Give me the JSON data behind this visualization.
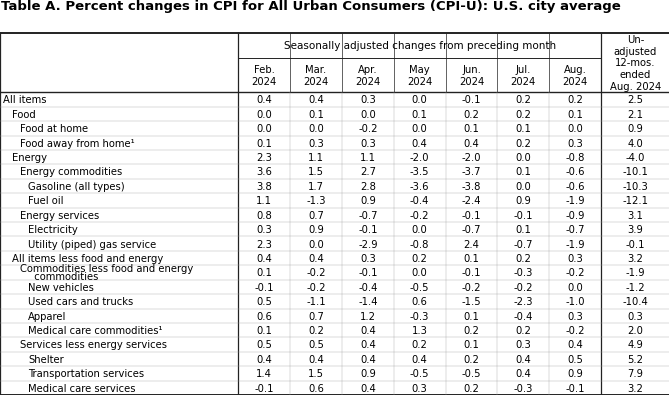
{
  "title": "Table A. Percent changes in CPI for All Urban Consumers (CPI-U): U.S. city average",
  "month_headers": [
    "Feb.\n2024",
    "Mar.\n2024",
    "Apr.\n2024",
    "May\n2024",
    "Jun.\n2024",
    "Jul.\n2024",
    "Aug.\n2024"
  ],
  "unadj_header": "Un-\nadjusted\n12-mos.\nended\nAug. 2024",
  "seasonal_header": "Seasonally adjusted changes from preceding month",
  "rows": [
    [
      "All items",
      0,
      "0.4",
      "0.4",
      "0.3",
      "0.0",
      "-0.1",
      "0.2",
      "0.2",
      "2.5"
    ],
    [
      "Food",
      1,
      "0.0",
      "0.1",
      "0.0",
      "0.1",
      "0.2",
      "0.2",
      "0.1",
      "2.1"
    ],
    [
      "Food at home",
      2,
      "0.0",
      "0.0",
      "-0.2",
      "0.0",
      "0.1",
      "0.1",
      "0.0",
      "0.9"
    ],
    [
      "Food away from home¹",
      2,
      "0.1",
      "0.3",
      "0.3",
      "0.4",
      "0.4",
      "0.2",
      "0.3",
      "4.0"
    ],
    [
      "Energy",
      1,
      "2.3",
      "1.1",
      "1.1",
      "-2.0",
      "-2.0",
      "0.0",
      "-0.8",
      "-4.0"
    ],
    [
      "Energy commodities",
      2,
      "3.6",
      "1.5",
      "2.7",
      "-3.5",
      "-3.7",
      "0.1",
      "-0.6",
      "-10.1"
    ],
    [
      "Gasoline (all types)",
      3,
      "3.8",
      "1.7",
      "2.8",
      "-3.6",
      "-3.8",
      "0.0",
      "-0.6",
      "-10.3"
    ],
    [
      "Fuel oil",
      3,
      "1.1",
      "-1.3",
      "0.9",
      "-0.4",
      "-2.4",
      "0.9",
      "-1.9",
      "-12.1"
    ],
    [
      "Energy services",
      2,
      "0.8",
      "0.7",
      "-0.7",
      "-0.2",
      "-0.1",
      "-0.1",
      "-0.9",
      "3.1"
    ],
    [
      "Electricity",
      3,
      "0.3",
      "0.9",
      "-0.1",
      "0.0",
      "-0.7",
      "0.1",
      "-0.7",
      "3.9"
    ],
    [
      "Utility (piped) gas service",
      3,
      "2.3",
      "0.0",
      "-2.9",
      "-0.8",
      "2.4",
      "-0.7",
      "-1.9",
      "-0.1"
    ],
    [
      "All items less food and energy",
      1,
      "0.4",
      "0.4",
      "0.3",
      "0.2",
      "0.1",
      "0.2",
      "0.3",
      "3.2"
    ],
    [
      "Commodities less food and energy\n  commodities",
      2,
      "0.1",
      "-0.2",
      "-0.1",
      "0.0",
      "-0.1",
      "-0.3",
      "-0.2",
      "-1.9"
    ],
    [
      "New vehicles",
      3,
      "-0.1",
      "-0.2",
      "-0.4",
      "-0.5",
      "-0.2",
      "-0.2",
      "0.0",
      "-1.2"
    ],
    [
      "Used cars and trucks",
      3,
      "0.5",
      "-1.1",
      "-1.4",
      "0.6",
      "-1.5",
      "-2.3",
      "-1.0",
      "-10.4"
    ],
    [
      "Apparel",
      3,
      "0.6",
      "0.7",
      "1.2",
      "-0.3",
      "0.1",
      "-0.4",
      "0.3",
      "0.3"
    ],
    [
      "Medical care commodities¹",
      3,
      "0.1",
      "0.2",
      "0.4",
      "1.3",
      "0.2",
      "0.2",
      "-0.2",
      "2.0"
    ],
    [
      "Services less energy services",
      2,
      "0.5",
      "0.5",
      "0.4",
      "0.2",
      "0.1",
      "0.3",
      "0.4",
      "4.9"
    ],
    [
      "Shelter",
      3,
      "0.4",
      "0.4",
      "0.4",
      "0.4",
      "0.2",
      "0.4",
      "0.5",
      "5.2"
    ],
    [
      "Transportation services",
      3,
      "1.4",
      "1.5",
      "0.9",
      "-0.5",
      "-0.5",
      "0.4",
      "0.9",
      "7.9"
    ],
    [
      "Medical care services",
      3,
      "-0.1",
      "0.6",
      "0.4",
      "0.3",
      "0.2",
      "-0.3",
      "-0.1",
      "3.2"
    ]
  ],
  "bg_color": "#ffffff",
  "text_color": "#000000",
  "title_fontsize": 9.5,
  "cell_fontsize": 7.2,
  "header_fontsize": 7.5
}
